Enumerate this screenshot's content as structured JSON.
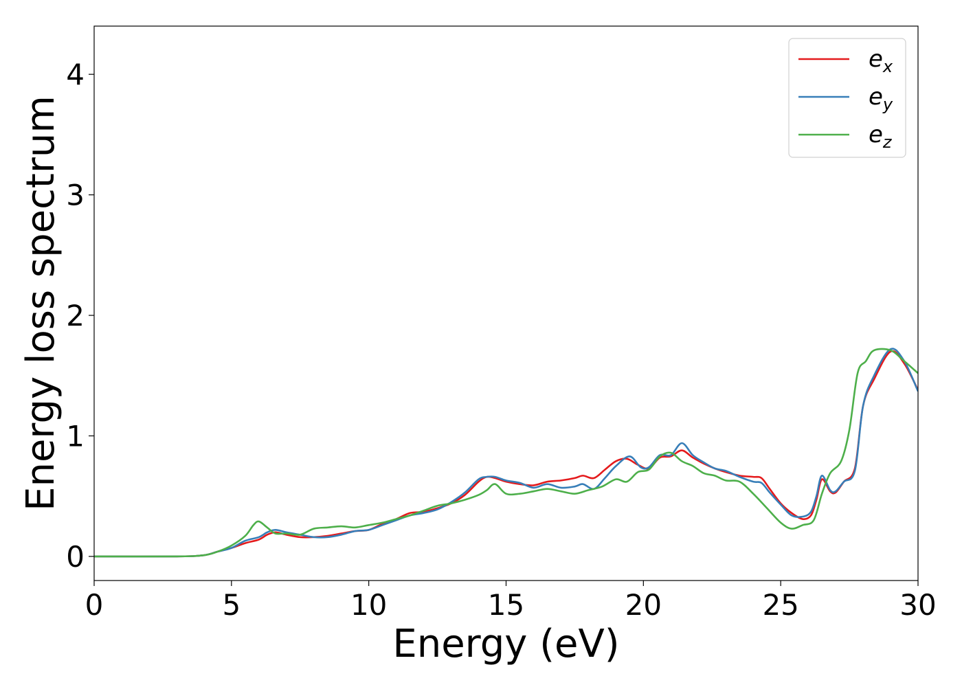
{
  "chart_data": {
    "type": "line",
    "title": "",
    "xlabel": "Energy (eV)",
    "ylabel": "Energy loss spectrum",
    "xlim": [
      0,
      30
    ],
    "ylim": [
      -0.2,
      4.4
    ],
    "xticks": [
      0,
      5,
      10,
      15,
      20,
      25,
      30
    ],
    "yticks": [
      0,
      1,
      2,
      3,
      4
    ],
    "grid": false,
    "legend_position": "top-right",
    "series": [
      {
        "name": "e_x",
        "label_base": "e",
        "label_sub": "x",
        "color": "#e41a1c",
        "points": [
          [
            0,
            0
          ],
          [
            3,
            0
          ],
          [
            4,
            0.01
          ],
          [
            4.5,
            0.04
          ],
          [
            5,
            0.07
          ],
          [
            5.5,
            0.11
          ],
          [
            6,
            0.14
          ],
          [
            6.3,
            0.18
          ],
          [
            6.6,
            0.2
          ],
          [
            7,
            0.18
          ],
          [
            7.5,
            0.16
          ],
          [
            8,
            0.16
          ],
          [
            8.5,
            0.17
          ],
          [
            9,
            0.19
          ],
          [
            9.5,
            0.21
          ],
          [
            10,
            0.22
          ],
          [
            10.5,
            0.27
          ],
          [
            11,
            0.31
          ],
          [
            11.5,
            0.36
          ],
          [
            12,
            0.37
          ],
          [
            12.5,
            0.4
          ],
          [
            13,
            0.44
          ],
          [
            13.5,
            0.51
          ],
          [
            14,
            0.62
          ],
          [
            14.3,
            0.66
          ],
          [
            14.6,
            0.65
          ],
          [
            15,
            0.62
          ],
          [
            15.5,
            0.6
          ],
          [
            16,
            0.59
          ],
          [
            16.5,
            0.62
          ],
          [
            17,
            0.63
          ],
          [
            17.5,
            0.65
          ],
          [
            17.8,
            0.67
          ],
          [
            18.2,
            0.65
          ],
          [
            18.6,
            0.72
          ],
          [
            19,
            0.79
          ],
          [
            19.4,
            0.81
          ],
          [
            19.8,
            0.76
          ],
          [
            20.2,
            0.73
          ],
          [
            20.6,
            0.82
          ],
          [
            21,
            0.83
          ],
          [
            21.4,
            0.88
          ],
          [
            21.8,
            0.82
          ],
          [
            22.2,
            0.77
          ],
          [
            22.6,
            0.73
          ],
          [
            23,
            0.7
          ],
          [
            23.5,
            0.67
          ],
          [
            24,
            0.66
          ],
          [
            24.3,
            0.65
          ],
          [
            24.6,
            0.56
          ],
          [
            25,
            0.44
          ],
          [
            25.4,
            0.36
          ],
          [
            25.8,
            0.31
          ],
          [
            26.1,
            0.34
          ],
          [
            26.3,
            0.47
          ],
          [
            26.5,
            0.64
          ],
          [
            26.8,
            0.54
          ],
          [
            27,
            0.53
          ],
          [
            27.3,
            0.62
          ],
          [
            27.7,
            0.73
          ],
          [
            28,
            1.25
          ],
          [
            28.4,
            1.47
          ],
          [
            29,
            1.7
          ],
          [
            29.5,
            1.6
          ],
          [
            30,
            1.38
          ]
        ]
      },
      {
        "name": "e_y",
        "label_base": "e",
        "label_sub": "y",
        "color": "#377eb8",
        "points": [
          [
            0,
            0
          ],
          [
            3,
            0
          ],
          [
            4,
            0.01
          ],
          [
            4.5,
            0.04
          ],
          [
            5,
            0.07
          ],
          [
            5.5,
            0.13
          ],
          [
            6,
            0.16
          ],
          [
            6.3,
            0.2
          ],
          [
            6.6,
            0.22
          ],
          [
            7,
            0.2
          ],
          [
            7.5,
            0.18
          ],
          [
            8,
            0.16
          ],
          [
            8.5,
            0.16
          ],
          [
            9,
            0.18
          ],
          [
            9.5,
            0.21
          ],
          [
            10,
            0.22
          ],
          [
            10.5,
            0.26
          ],
          [
            11,
            0.3
          ],
          [
            11.5,
            0.34
          ],
          [
            12,
            0.36
          ],
          [
            12.5,
            0.39
          ],
          [
            13,
            0.45
          ],
          [
            13.5,
            0.53
          ],
          [
            14,
            0.64
          ],
          [
            14.3,
            0.66
          ],
          [
            14.6,
            0.66
          ],
          [
            15,
            0.63
          ],
          [
            15.5,
            0.61
          ],
          [
            16,
            0.57
          ],
          [
            16.5,
            0.6
          ],
          [
            17,
            0.57
          ],
          [
            17.5,
            0.58
          ],
          [
            17.8,
            0.6
          ],
          [
            18.2,
            0.56
          ],
          [
            18.6,
            0.65
          ],
          [
            19,
            0.75
          ],
          [
            19.5,
            0.83
          ],
          [
            19.9,
            0.74
          ],
          [
            20.2,
            0.74
          ],
          [
            20.6,
            0.84
          ],
          [
            21,
            0.84
          ],
          [
            21.4,
            0.94
          ],
          [
            21.8,
            0.84
          ],
          [
            22.2,
            0.78
          ],
          [
            22.6,
            0.73
          ],
          [
            23,
            0.71
          ],
          [
            23.5,
            0.66
          ],
          [
            24,
            0.62
          ],
          [
            24.3,
            0.61
          ],
          [
            24.6,
            0.53
          ],
          [
            25,
            0.43
          ],
          [
            25.4,
            0.34
          ],
          [
            25.8,
            0.33
          ],
          [
            26.1,
            0.37
          ],
          [
            26.3,
            0.5
          ],
          [
            26.5,
            0.67
          ],
          [
            26.8,
            0.55
          ],
          [
            27,
            0.54
          ],
          [
            27.3,
            0.62
          ],
          [
            27.7,
            0.71
          ],
          [
            28,
            1.25
          ],
          [
            28.4,
            1.5
          ],
          [
            29,
            1.72
          ],
          [
            29.5,
            1.62
          ],
          [
            30,
            1.37
          ]
        ]
      },
      {
        "name": "e_z",
        "label_base": "e",
        "label_sub": "z",
        "color": "#4daf4a",
        "points": [
          [
            0,
            0
          ],
          [
            3,
            0
          ],
          [
            4,
            0.01
          ],
          [
            4.5,
            0.04
          ],
          [
            5,
            0.09
          ],
          [
            5.5,
            0.17
          ],
          [
            5.8,
            0.26
          ],
          [
            6,
            0.29
          ],
          [
            6.3,
            0.24
          ],
          [
            6.6,
            0.19
          ],
          [
            7,
            0.19
          ],
          [
            7.5,
            0.18
          ],
          [
            8,
            0.23
          ],
          [
            8.5,
            0.24
          ],
          [
            9,
            0.25
          ],
          [
            9.5,
            0.24
          ],
          [
            10,
            0.26
          ],
          [
            10.5,
            0.28
          ],
          [
            11,
            0.31
          ],
          [
            11.5,
            0.34
          ],
          [
            12,
            0.38
          ],
          [
            12.5,
            0.42
          ],
          [
            13,
            0.44
          ],
          [
            13.5,
            0.47
          ],
          [
            14,
            0.51
          ],
          [
            14.3,
            0.55
          ],
          [
            14.6,
            0.6
          ],
          [
            15,
            0.52
          ],
          [
            15.5,
            0.52
          ],
          [
            16,
            0.54
          ],
          [
            16.5,
            0.56
          ],
          [
            17,
            0.54
          ],
          [
            17.5,
            0.52
          ],
          [
            18,
            0.55
          ],
          [
            18.5,
            0.58
          ],
          [
            19,
            0.64
          ],
          [
            19.4,
            0.62
          ],
          [
            19.8,
            0.7
          ],
          [
            20.2,
            0.72
          ],
          [
            20.6,
            0.83
          ],
          [
            21,
            0.86
          ],
          [
            21.4,
            0.79
          ],
          [
            21.8,
            0.75
          ],
          [
            22.2,
            0.69
          ],
          [
            22.6,
            0.67
          ],
          [
            23,
            0.63
          ],
          [
            23.5,
            0.62
          ],
          [
            24,
            0.52
          ],
          [
            24.5,
            0.4
          ],
          [
            25,
            0.28
          ],
          [
            25.4,
            0.23
          ],
          [
            25.8,
            0.26
          ],
          [
            26.2,
            0.3
          ],
          [
            26.5,
            0.52
          ],
          [
            26.8,
            0.69
          ],
          [
            27.2,
            0.79
          ],
          [
            27.5,
            1.05
          ],
          [
            27.8,
            1.52
          ],
          [
            28.1,
            1.62
          ],
          [
            28.4,
            1.71
          ],
          [
            29,
            1.71
          ],
          [
            29.5,
            1.62
          ],
          [
            30,
            1.52
          ]
        ]
      }
    ]
  }
}
